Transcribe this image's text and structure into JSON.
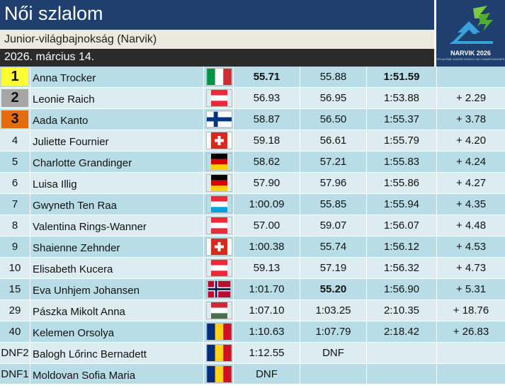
{
  "header": {
    "title": "Női szlalom",
    "subtitle": "Junior-világbajnokság (Narvik)",
    "date": "2026. március 14."
  },
  "logo": {
    "text": "NARVIK 2026",
    "subtext": "FIS ALPINE JUNIOR WORLD SKI CHAMPIONSHIPS"
  },
  "colors": {
    "gold": "#ffff33",
    "silver": "#a6a6a6",
    "bronze": "#e46c0a",
    "header_blue": "#1f3f6e",
    "row_odd": "#b9dde6",
    "row_even": "#dcecf0"
  },
  "results": [
    {
      "rank": "1",
      "medal": "gold",
      "name": "Anna Trocker",
      "flag": "italy-flag-icon",
      "run1": "55.71",
      "run1_bold": true,
      "run2": "55.88",
      "run2_bold": false,
      "total": "1:51.59",
      "total_bold": true,
      "diff": ""
    },
    {
      "rank": "2",
      "medal": "silver",
      "name": "Leonie Raich",
      "flag": "austria-flag-icon",
      "run1": "56.93",
      "run1_bold": false,
      "run2": "56.95",
      "run2_bold": false,
      "total": "1:53.88",
      "total_bold": false,
      "diff": "+ 2.29"
    },
    {
      "rank": "3",
      "medal": "bronze",
      "name": "Aada Kanto",
      "flag": "finland-flag-icon",
      "run1": "58.87",
      "run1_bold": false,
      "run2": "56.50",
      "run2_bold": false,
      "total": "1:55.37",
      "total_bold": false,
      "diff": "+ 3.78"
    },
    {
      "rank": "4",
      "medal": "",
      "name": "Juliette Fournier",
      "flag": "switzerland-flag-icon",
      "run1": "59.18",
      "run1_bold": false,
      "run2": "56.61",
      "run2_bold": false,
      "total": "1:55.79",
      "total_bold": false,
      "diff": "+ 4.20"
    },
    {
      "rank": "5",
      "medal": "",
      "name": "Charlotte Grandinger",
      "flag": "germany-flag-icon",
      "run1": "58.62",
      "run1_bold": false,
      "run2": "57.21",
      "run2_bold": false,
      "total": "1:55.83",
      "total_bold": false,
      "diff": "+ 4.24"
    },
    {
      "rank": "6",
      "medal": "",
      "name": "Luisa Illig",
      "flag": "germany-flag-icon",
      "run1": "57.90",
      "run1_bold": false,
      "run2": "57.96",
      "run2_bold": false,
      "total": "1:55.86",
      "total_bold": false,
      "diff": "+ 4.27"
    },
    {
      "rank": "7",
      "medal": "",
      "name": "Gwyneth Ten Raa",
      "flag": "luxembourg-flag-icon",
      "run1": "1:00.09",
      "run1_bold": false,
      "run2": "55.85",
      "run2_bold": false,
      "total": "1:55.94",
      "total_bold": false,
      "diff": "+ 4.35"
    },
    {
      "rank": "8",
      "medal": "",
      "name": "Valentina Rings-Wanner",
      "flag": "austria-flag-icon",
      "run1": "57.00",
      "run1_bold": false,
      "run2": "59.07",
      "run2_bold": false,
      "total": "1:56.07",
      "total_bold": false,
      "diff": "+ 4.48"
    },
    {
      "rank": "9",
      "medal": "",
      "name": "Shaienne Zehnder",
      "flag": "switzerland-flag-icon",
      "run1": "1:00.38",
      "run1_bold": false,
      "run2": "55.74",
      "run2_bold": false,
      "total": "1:56.12",
      "total_bold": false,
      "diff": "+ 4.53"
    },
    {
      "rank": "10",
      "medal": "",
      "name": "Elisabeth Kucera",
      "flag": "austria-flag-icon",
      "run1": "59.13",
      "run1_bold": false,
      "run2": "57.19",
      "run2_bold": false,
      "total": "1:56.32",
      "total_bold": false,
      "diff": "+ 4.73"
    },
    {
      "rank": "15",
      "medal": "",
      "name": "Eva Unhjem Johansen",
      "flag": "norway-flag-icon",
      "run1": "1:01.70",
      "run1_bold": false,
      "run2": "55.20",
      "run2_bold": true,
      "total": "1:56.90",
      "total_bold": false,
      "diff": "+ 5.31"
    },
    {
      "rank": "29",
      "medal": "",
      "name": "Pászka Mikolt Anna",
      "flag": "hungary-flag-icon",
      "run1": "1:07.10",
      "run1_bold": false,
      "run2": "1:03.25",
      "run2_bold": false,
      "total": "2:10.35",
      "total_bold": false,
      "diff": "+ 18.76"
    },
    {
      "rank": "40",
      "medal": "",
      "name": "Kelemen Orsolya",
      "flag": "romania-flag-icon",
      "run1": "1:10.63",
      "run1_bold": false,
      "run2": "1:07.79",
      "run2_bold": false,
      "total": "2:18.42",
      "total_bold": false,
      "diff": "+ 26.83"
    },
    {
      "rank": "DNF2",
      "medal": "",
      "name": "Balogh Lőrinc Bernadett",
      "flag": "romania-flag-icon",
      "run1": "1:12.55",
      "run1_bold": false,
      "run2": "DNF",
      "run2_bold": false,
      "total": "",
      "total_bold": false,
      "diff": ""
    },
    {
      "rank": "DNF1",
      "medal": "",
      "name": "Moldovan Sofia Maria",
      "flag": "romania-flag-icon",
      "run1": "DNF",
      "run1_bold": false,
      "run2": "",
      "run2_bold": false,
      "total": "",
      "total_bold": false,
      "diff": ""
    }
  ]
}
